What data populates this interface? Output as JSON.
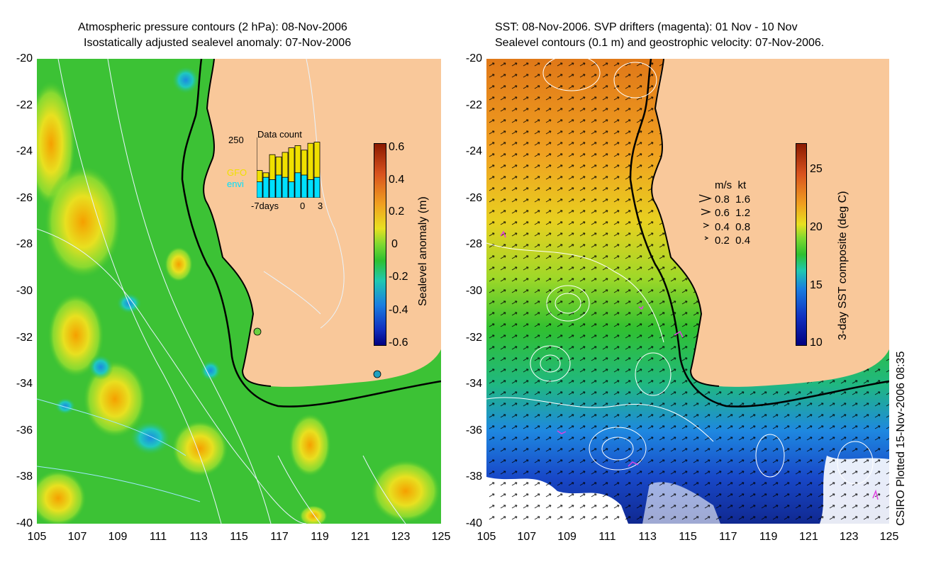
{
  "left": {
    "title_line1": "Atmospheric pressure contours (2 hPa): 08-Nov-2006",
    "title_line2": "Isostatically adjusted sealevel anomaly: 07-Nov-2006",
    "colorbar_label": "Sealevel anomaly (m)",
    "colorbar_ticks": [
      "0.6",
      "0.4",
      "0.2",
      "0",
      "-0.2",
      "-0.4",
      "-0.6"
    ],
    "inset": {
      "title": "Data count",
      "ymax": "250",
      "series": [
        "GFO",
        "envi"
      ],
      "xlabels": [
        "-7days",
        "0",
        "3"
      ],
      "gfo_values": [
        120,
        110,
        190,
        180,
        200,
        220,
        230,
        210,
        240,
        245
      ],
      "envi_values": [
        70,
        90,
        80,
        100,
        90,
        70,
        110,
        100,
        80,
        90
      ]
    }
  },
  "right": {
    "title_line1": "SST: 08-Nov-2006. SVP drifters (magenta): 01 Nov - 10 Nov",
    "title_line2": "Sealevel contours (0.1 m) and geostrophic velocity: 07-Nov-2006.",
    "colorbar_label": "3-day SST composite (deg C)",
    "colorbar_ticks": [
      "25",
      "20",
      "15",
      "10"
    ],
    "legend_header": "m/s  kt",
    "legend_rows": [
      "0.8  1.6",
      "0.6  1.2",
      "0.4  0.8",
      "0.2  0.4"
    ]
  },
  "y_ticks": [
    "-20",
    "-22",
    "-24",
    "-26",
    "-28",
    "-30",
    "-32",
    "-34",
    "-36",
    "-38",
    "-40"
  ],
  "x_ticks": [
    "105",
    "107",
    "109",
    "111",
    "113",
    "115",
    "117",
    "119",
    "121",
    "123",
    "125"
  ],
  "credit": "CSIRO Plotted 15-Nov-2006 08:35",
  "colors": {
    "land": "#f9c89a",
    "sea_green": "#38c230",
    "coast": "#000000"
  }
}
